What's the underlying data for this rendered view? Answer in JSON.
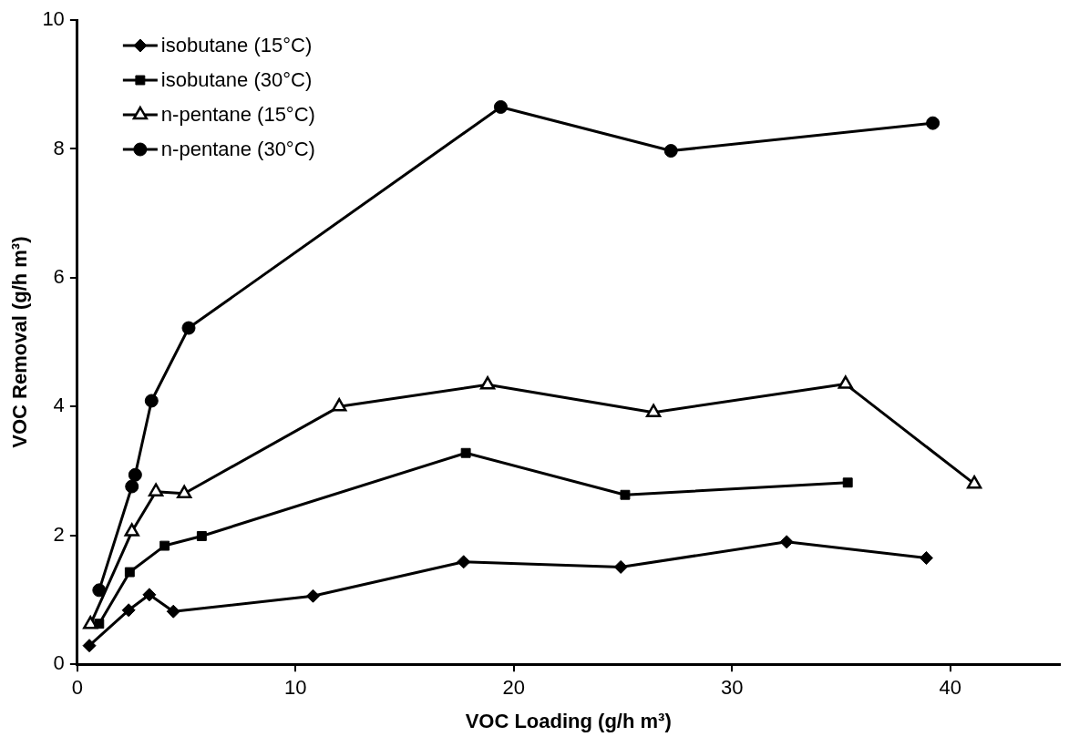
{
  "chart_data": {
    "type": "line",
    "xlabel": "VOC Loading (g/h m³)",
    "ylabel": "VOC Removal (g/h m³)",
    "xlim": [
      0,
      45
    ],
    "xticks": [
      0,
      10,
      20,
      30,
      40
    ],
    "ylim": [
      0,
      10
    ],
    "yticks": [
      0,
      2,
      4,
      6,
      8,
      10
    ],
    "grid": false,
    "legend": "top left",
    "line_style": "solid",
    "series": [
      {
        "name": "isobutane (15°C)",
        "color": "#000000",
        "marker": "diamond",
        "x": [
          0.55,
          2.35,
          3.3,
          4.4,
          10.8,
          17.7,
          24.9,
          32.5,
          38.9
        ],
        "values": [
          0.29,
          0.84,
          1.08,
          0.82,
          1.06,
          1.59,
          1.51,
          1.9,
          1.65
        ]
      },
      {
        "name": "isobutane (30°C)",
        "color": "#000000",
        "marker": "square",
        "x": [
          1.0,
          2.4,
          4.0,
          5.7,
          17.8,
          25.1,
          35.3
        ],
        "values": [
          0.63,
          1.43,
          1.84,
          1.99,
          3.28,
          2.63,
          2.82
        ]
      },
      {
        "name": "n-pentane (15°C)",
        "color": "#000000",
        "marker": "triangle",
        "x": [
          0.6,
          2.5,
          3.6,
          4.9,
          12.0,
          18.8,
          26.4,
          35.2,
          41.1
        ],
        "values": [
          0.62,
          2.06,
          2.68,
          2.65,
          4.0,
          4.34,
          3.91,
          4.35,
          2.8
        ]
      },
      {
        "name": "n-pentane (30°C)",
        "color": "#000000",
        "marker": "circle",
        "x": [
          1.0,
          2.5,
          2.65,
          3.4,
          5.1,
          19.4,
          27.2,
          39.2
        ],
        "values": [
          1.15,
          2.76,
          2.94,
          4.09,
          5.22,
          8.65,
          7.97,
          8.4
        ]
      }
    ]
  }
}
